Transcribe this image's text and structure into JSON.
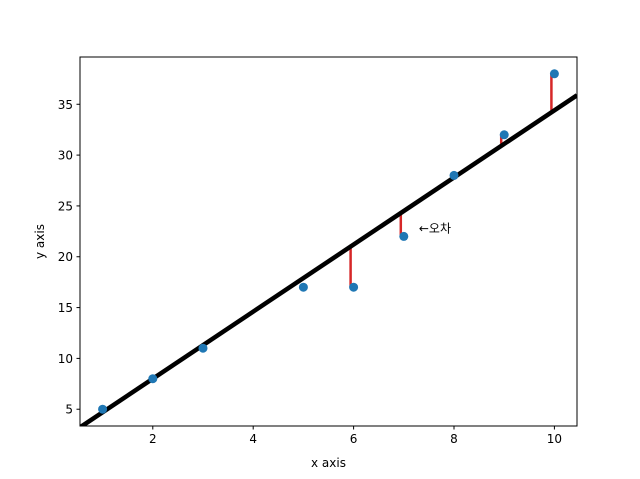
{
  "chart_data": {
    "type": "scatter",
    "xlabel": "x axis",
    "ylabel": "y axis",
    "xlim": [
      0.55,
      10.45
    ],
    "ylim": [
      3.35,
      39.65
    ],
    "xticks": [
      2,
      4,
      6,
      8,
      10
    ],
    "yticks": [
      5,
      10,
      15,
      20,
      25,
      30,
      35
    ],
    "grid": false,
    "points": {
      "x": [
        1,
        2,
        3,
        5,
        6,
        7,
        8,
        9,
        10
      ],
      "y": [
        5,
        8,
        11,
        17,
        17,
        22,
        28,
        32,
        38
      ],
      "color": "#1f77b4"
    },
    "fit_line": {
      "slope": 3.3,
      "intercept": 1.4,
      "color": "#000000"
    },
    "error_segments": {
      "x": [
        6,
        7,
        9,
        10
      ],
      "color": "#d62728"
    },
    "annotation": {
      "text": "←오차",
      "x": 7.3,
      "y": 22.8
    }
  }
}
